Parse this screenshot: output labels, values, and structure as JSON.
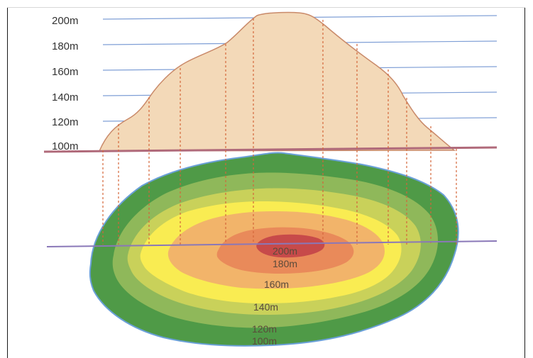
{
  "diagram": {
    "elevation_labels": [
      "200m",
      "180m",
      "160m",
      "140m",
      "120m",
      "100m"
    ],
    "contour_labels": [
      "200m",
      "180m",
      "160m",
      "140m",
      "120m",
      "100m"
    ],
    "colors": {
      "hill_fill": "#f3d9b8",
      "hill_outline": "#c98a6a",
      "grid_line": "#7f9fd6",
      "base_line": "#b06a7a",
      "projection_line": "#d4663a",
      "section_line": "#8a78b8",
      "contour_200": "#c74a4a",
      "contour_180": "#e98a5a",
      "contour_160": "#f2b46a",
      "contour_140": "#f9ec52",
      "contour_120": "#c9d15a",
      "contour_100": "#8fb85a",
      "contour_outer": "#4f9a47",
      "label_text": "#333333",
      "contour_label_text": "#5a4a3a"
    }
  }
}
